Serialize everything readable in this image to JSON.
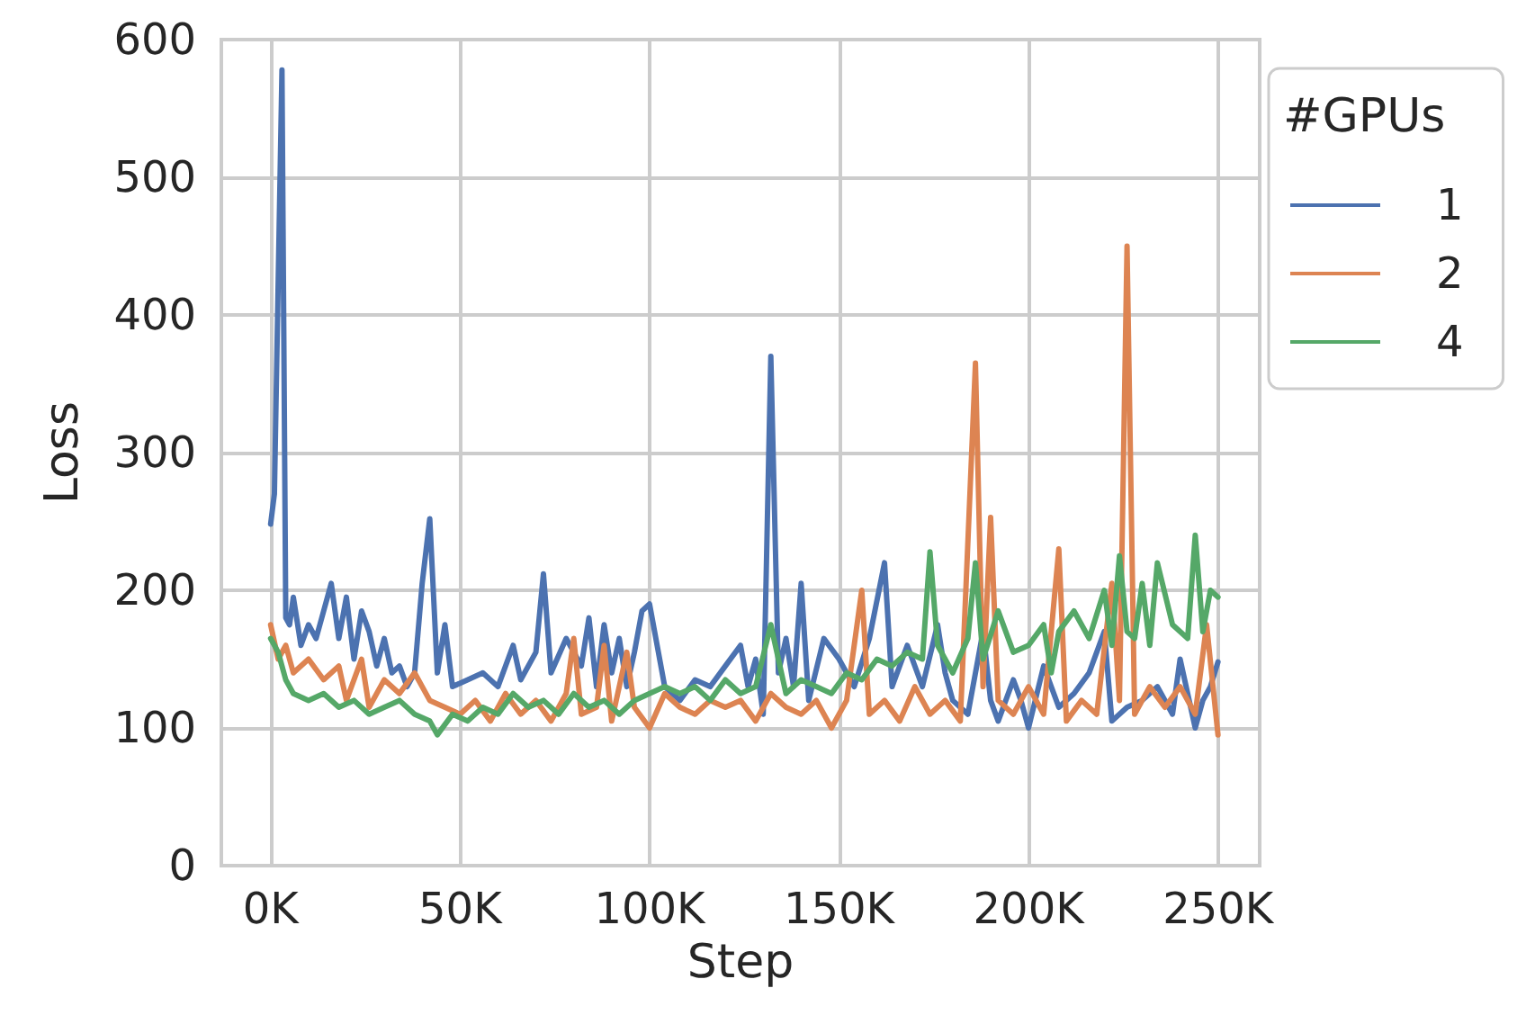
{
  "chart_data": {
    "type": "line",
    "xlabel": "Step",
    "ylabel": "Loss",
    "legend_title": "#GPUs",
    "legend": "top right",
    "grid": true,
    "xlim": [
      -13000,
      261000
    ],
    "ylim": [
      0,
      600
    ],
    "xticks": [
      {
        "value": 0,
        "label": "0K"
      },
      {
        "value": 50000,
        "label": "50K"
      },
      {
        "value": 100000,
        "label": "100K"
      },
      {
        "value": 150000,
        "label": "150K"
      },
      {
        "value": 200000,
        "label": "200K"
      },
      {
        "value": 250000,
        "label": "250K"
      }
    ],
    "yticks": [
      0,
      100,
      200,
      300,
      400,
      500,
      600
    ],
    "series": [
      {
        "name": "1",
        "color": "#4c72b0",
        "x": [
          0,
          1000,
          3000,
          4000,
          5000,
          6000,
          8000,
          10000,
          12000,
          14000,
          16000,
          18000,
          20000,
          22000,
          24000,
          26000,
          28000,
          30000,
          32000,
          34000,
          36000,
          38000,
          40000,
          42000,
          44000,
          46000,
          48000,
          52000,
          56000,
          60000,
          64000,
          66000,
          70000,
          72000,
          74000,
          78000,
          82000,
          84000,
          86000,
          88000,
          90000,
          92000,
          94000,
          96000,
          98000,
          100000,
          102000,
          104000,
          108000,
          112000,
          116000,
          120000,
          124000,
          126000,
          128000,
          130000,
          132000,
          134000,
          136000,
          138000,
          140000,
          142000,
          146000,
          150000,
          154000,
          158000,
          162000,
          164000,
          168000,
          172000,
          176000,
          178000,
          180000,
          184000,
          188000,
          190000,
          192000,
          196000,
          198000,
          200000,
          204000,
          208000,
          212000,
          216000,
          220000,
          222000,
          226000,
          230000,
          234000,
          238000,
          240000,
          244000,
          246000,
          248000,
          250000
        ],
        "values": [
          248,
          270,
          578,
          180,
          175,
          195,
          160,
          175,
          165,
          185,
          205,
          165,
          195,
          150,
          185,
          170,
          145,
          165,
          140,
          145,
          130,
          140,
          205,
          252,
          140,
          175,
          130,
          135,
          140,
          130,
          160,
          135,
          155,
          212,
          140,
          165,
          145,
          180,
          130,
          175,
          140,
          165,
          130,
          155,
          185,
          190,
          160,
          130,
          120,
          135,
          130,
          145,
          160,
          130,
          150,
          110,
          370,
          140,
          165,
          130,
          205,
          120,
          165,
          150,
          130,
          165,
          220,
          130,
          160,
          130,
          175,
          140,
          120,
          110,
          170,
          120,
          105,
          135,
          120,
          100,
          145,
          115,
          125,
          140,
          170,
          105,
          115,
          120,
          130,
          110,
          150,
          100,
          120,
          130,
          148
        ]
      },
      {
        "name": "2",
        "color": "#dd8452",
        "x": [
          0,
          2000,
          4000,
          6000,
          10000,
          14000,
          18000,
          20000,
          24000,
          26000,
          30000,
          34000,
          38000,
          42000,
          46000,
          50000,
          54000,
          58000,
          62000,
          66000,
          70000,
          74000,
          78000,
          80000,
          82000,
          86000,
          88000,
          90000,
          94000,
          96000,
          100000,
          104000,
          108000,
          112000,
          116000,
          120000,
          124000,
          128000,
          132000,
          136000,
          140000,
          144000,
          148000,
          152000,
          156000,
          158000,
          162000,
          166000,
          170000,
          174000,
          178000,
          182000,
          186000,
          188000,
          190000,
          192000,
          196000,
          200000,
          204000,
          208000,
          210000,
          214000,
          218000,
          222000,
          224000,
          226000,
          228000,
          232000,
          236000,
          240000,
          244000,
          247000,
          250000
        ],
        "values": [
          175,
          150,
          160,
          140,
          150,
          135,
          145,
          120,
          150,
          115,
          135,
          125,
          140,
          120,
          115,
          110,
          120,
          105,
          125,
          110,
          120,
          105,
          125,
          165,
          110,
          115,
          160,
          105,
          155,
          115,
          100,
          125,
          115,
          110,
          120,
          115,
          120,
          105,
          125,
          115,
          110,
          120,
          100,
          120,
          200,
          110,
          120,
          105,
          130,
          110,
          120,
          105,
          365,
          130,
          253,
          120,
          110,
          130,
          110,
          230,
          105,
          120,
          110,
          205,
          120,
          450,
          110,
          130,
          115,
          130,
          110,
          175,
          95
        ]
      },
      {
        "name": "4",
        "color": "#55a868",
        "x": [
          0,
          2000,
          4000,
          6000,
          10000,
          14000,
          18000,
          22000,
          26000,
          30000,
          34000,
          38000,
          42000,
          44000,
          48000,
          52000,
          56000,
          60000,
          64000,
          68000,
          72000,
          76000,
          80000,
          84000,
          88000,
          92000,
          96000,
          100000,
          104000,
          108000,
          112000,
          116000,
          120000,
          124000,
          128000,
          132000,
          136000,
          140000,
          144000,
          148000,
          152000,
          156000,
          160000,
          164000,
          168000,
          172000,
          174000,
          176000,
          180000,
          184000,
          186000,
          188000,
          192000,
          196000,
          200000,
          204000,
          206000,
          208000,
          212000,
          216000,
          220000,
          222000,
          224000,
          226000,
          228000,
          230000,
          232000,
          234000,
          238000,
          242000,
          244000,
          246000,
          248000,
          250000
        ],
        "values": [
          165,
          155,
          135,
          125,
          120,
          125,
          115,
          120,
          110,
          115,
          120,
          110,
          105,
          95,
          110,
          105,
          115,
          110,
          125,
          115,
          120,
          110,
          125,
          115,
          120,
          110,
          120,
          125,
          130,
          125,
          130,
          120,
          135,
          125,
          130,
          175,
          125,
          135,
          130,
          125,
          140,
          135,
          150,
          145,
          155,
          150,
          228,
          160,
          140,
          165,
          220,
          150,
          185,
          155,
          160,
          175,
          140,
          170,
          185,
          165,
          200,
          160,
          225,
          170,
          165,
          205,
          160,
          220,
          175,
          165,
          240,
          170,
          200,
          195
        ]
      }
    ]
  }
}
